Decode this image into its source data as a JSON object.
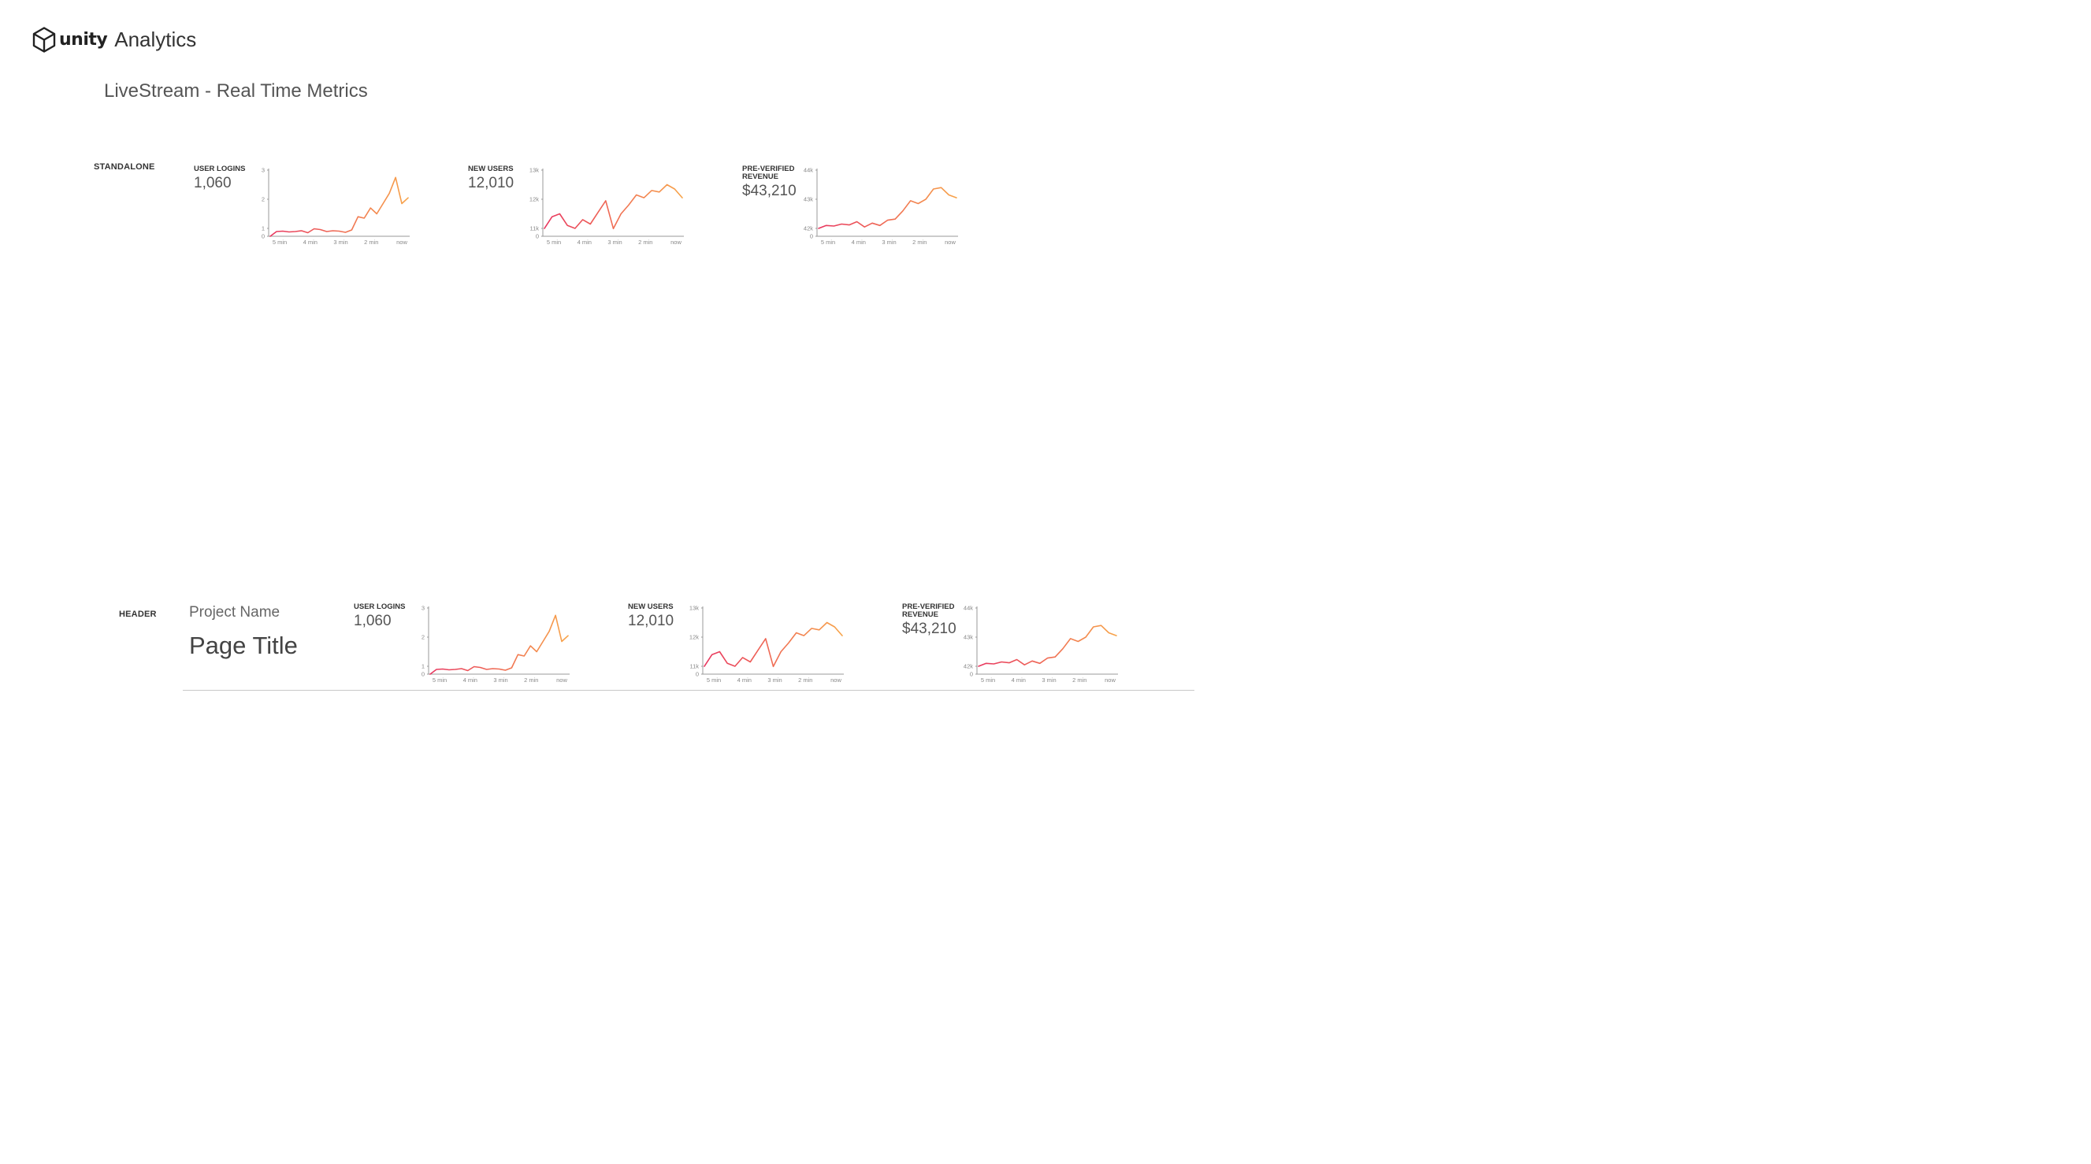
{
  "brand": {
    "logo_icon": "unity-cube-icon",
    "wordmark": "unity",
    "product": "Analytics"
  },
  "page": {
    "title": "LiveStream - Real Time Metrics"
  },
  "sections": {
    "standalone_label": "STANDALONE",
    "header_label": "HEADER"
  },
  "header": {
    "project_name": "Project Name",
    "page_title": "Page Title"
  },
  "colors": {
    "line_start": "#e8365f",
    "line_end": "#f7a44a",
    "axis": "#9a9a9a",
    "divider": "#c8c8c8"
  },
  "metrics": {
    "user_logins": {
      "title": "USER LOGINS",
      "value": "1,060"
    },
    "new_users": {
      "title": "NEW USERS",
      "value": "12,010"
    },
    "revenue": {
      "title": "PRE-VERIFIED REVENUE",
      "value": "$43,210"
    }
  },
  "chart_data": [
    {
      "type": "line",
      "metric": "user_logins",
      "x_ticks": [
        "5 min",
        "4 min",
        "3 min",
        "2 min",
        "now"
      ],
      "y_ticks": [
        "0",
        "1",
        "2",
        "3"
      ],
      "ylim": [
        0,
        3
      ],
      "grid": false,
      "values": [
        0.0,
        0.6,
        0.65,
        0.55,
        0.6,
        0.7,
        0.45,
        0.95,
        0.85,
        0.6,
        0.7,
        0.65,
        0.5,
        0.8,
        1.4,
        1.35,
        1.7,
        1.5,
        1.85,
        2.2,
        2.75,
        1.85,
        2.05
      ]
    },
    {
      "type": "line",
      "metric": "new_users",
      "x_ticks": [
        "5 min",
        "4 min",
        "3 min",
        "2 min",
        "now"
      ],
      "y_ticks": [
        "0",
        "11k",
        "12k",
        "13k"
      ],
      "ylim": [
        0,
        13000
      ],
      "grid": false,
      "values": [
        10900,
        11400,
        11500,
        11100,
        11000,
        11300,
        11150,
        11550,
        11950,
        10700,
        11500,
        11800,
        12150,
        12050,
        12300,
        12250,
        12500,
        12350,
        12050
      ]
    },
    {
      "type": "line",
      "metric": "revenue",
      "x_ticks": [
        "5 min",
        "4 min",
        "3 min",
        "2 min",
        "now"
      ],
      "y_ticks": [
        "0",
        "42k",
        "43k",
        "44k"
      ],
      "ylim": [
        0,
        44000
      ],
      "grid": false,
      "values": [
        42000,
        42100,
        42080,
        42150,
        42120,
        42230,
        42050,
        42180,
        42100,
        42280,
        42320,
        42600,
        42950,
        42850,
        43000,
        43350,
        43400,
        43150,
        43050
      ]
    }
  ]
}
